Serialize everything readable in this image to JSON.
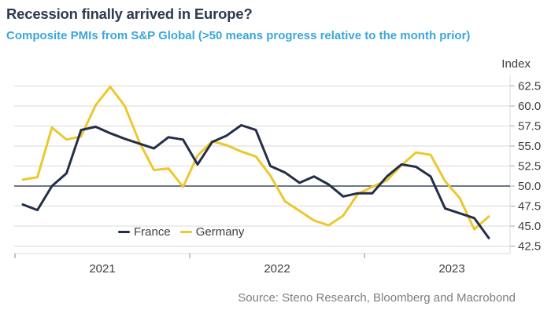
{
  "header": {
    "title": "Recession finally arrived in Europe?",
    "subtitle": "Composite PMIs from S&P Global (>50 means progress relative to the month prior)"
  },
  "source_note": "Source: Steno Research, Bloomberg and Macrobond",
  "colors": {
    "title_text": "#2d3a52",
    "subtitle_text": "#3aa6dc",
    "axis_text": "#3d3d3d",
    "source_text": "#7d7d7d",
    "gridline": "#d9d9d9",
    "tick_mark": "#8c8c8c",
    "y_tick_dash": "#a6a6a6",
    "baseline_50": "#3a4a63",
    "france": "#242e49",
    "germany": "#edc72f"
  },
  "chart_data": {
    "type": "line",
    "title": "Recession finally arrived in Europe?",
    "subtitle": "Composite PMIs from S&P Global (>50 means progress relative to the month prior)",
    "y_axis_title": "Index",
    "baseline": 50,
    "ylim": [
      41.5,
      64
    ],
    "grid": true,
    "legend_position": "inside-bottom-left",
    "y_ticks": [
      {
        "value": 62.5,
        "label": "62.5"
      },
      {
        "value": 60.0,
        "label": "60.0"
      },
      {
        "value": 57.5,
        "label": "57.5"
      },
      {
        "value": 55.0,
        "label": "55.0"
      },
      {
        "value": 52.5,
        "label": "52.5"
      },
      {
        "value": 50.0,
        "label": "50.0"
      },
      {
        "value": 47.5,
        "label": "47.5"
      },
      {
        "value": 45.0,
        "label": "45.0"
      },
      {
        "value": 42.5,
        "label": "42.5"
      }
    ],
    "x_year_labels": [
      "2021",
      "2022",
      "2023"
    ],
    "months": [
      "2021-01",
      "2021-02",
      "2021-03",
      "2021-04",
      "2021-05",
      "2021-06",
      "2021-07",
      "2021-08",
      "2021-09",
      "2021-10",
      "2021-11",
      "2021-12",
      "2022-01",
      "2022-02",
      "2022-03",
      "2022-04",
      "2022-05",
      "2022-06",
      "2022-07",
      "2022-08",
      "2022-09",
      "2022-10",
      "2022-11",
      "2022-12",
      "2023-01",
      "2023-02",
      "2023-03",
      "2023-04",
      "2023-05",
      "2023-06",
      "2023-07",
      "2023-08",
      "2023-09"
    ],
    "series": [
      {
        "name": "France",
        "color": "#242e49",
        "values": [
          47.7,
          47.0,
          50.0,
          51.6,
          57.0,
          57.4,
          56.6,
          55.9,
          55.3,
          54.7,
          56.1,
          55.8,
          52.7,
          55.5,
          56.3,
          57.6,
          57.0,
          52.5,
          51.7,
          50.4,
          51.2,
          50.2,
          48.7,
          49.1,
          49.1,
          51.2,
          52.7,
          52.4,
          51.2,
          47.2,
          46.6,
          46.0,
          43.5
        ]
      },
      {
        "name": "Germany",
        "color": "#edc72f",
        "values": [
          50.8,
          51.1,
          57.3,
          55.8,
          56.2,
          60.1,
          62.4,
          60.0,
          55.5,
          52.0,
          52.2,
          49.9,
          53.8,
          55.6,
          55.1,
          54.3,
          53.7,
          51.3,
          48.1,
          46.9,
          45.7,
          45.1,
          46.3,
          49.0,
          49.9,
          50.7,
          52.6,
          54.2,
          53.9,
          50.6,
          48.5,
          44.6,
          46.2
        ]
      }
    ]
  }
}
